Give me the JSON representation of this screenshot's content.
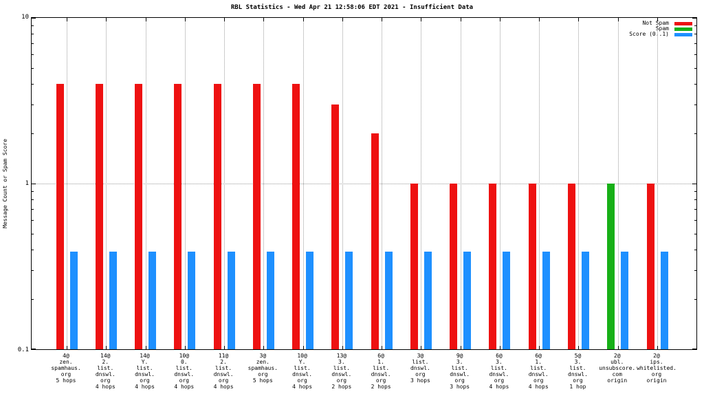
{
  "chart_data": {
    "type": "bar",
    "title": "RBL Statistics - Wed Apr 21 12:58:06 EDT 2021 - Insufficient Data",
    "ylabel": "Message Count or Spam Score",
    "xlabel": "",
    "scale": "log",
    "ylim": [
      0.1,
      10
    ],
    "y_ticks": [
      "10",
      "1",
      "0.1"
    ],
    "grid": true,
    "legend_position": "top-right",
    "categories": [
      [
        "4@",
        "zen.",
        "spamhaus.",
        "org",
        "5 hops"
      ],
      [
        "14@",
        "2.",
        "list.",
        "dnswl.",
        "org",
        "4 hops"
      ],
      [
        "14@",
        "Y.",
        "list.",
        "dnswl.",
        "org",
        "4 hops"
      ],
      [
        "10@",
        "0.",
        "list.",
        "dnswl.",
        "org",
        "4 hops"
      ],
      [
        "11@",
        "2.",
        "list.",
        "dnswl.",
        "org",
        "4 hops"
      ],
      [
        "3@",
        "zen.",
        "spamhaus.",
        "org",
        "5 hops"
      ],
      [
        "10@",
        "Y.",
        "list.",
        "dnswl.",
        "org",
        "4 hops"
      ],
      [
        "13@",
        "3.",
        "list.",
        "dnswl.",
        "org",
        "2 hops"
      ],
      [
        "6@",
        "1.",
        "list.",
        "dnswl.",
        "org",
        "2 hops"
      ],
      [
        "3@",
        "list.",
        "dnswl.",
        "org",
        "3 hops"
      ],
      [
        "9@",
        "3.",
        "list.",
        "dnswl.",
        "org",
        "3 hops"
      ],
      [
        "6@",
        "3.",
        "list.",
        "dnswl.",
        "org",
        "4 hops"
      ],
      [
        "6@",
        "1.",
        "list.",
        "dnswl.",
        "org",
        "4 hops"
      ],
      [
        "5@",
        "3.",
        "list.",
        "dnswl.",
        "org",
        "1 hop"
      ],
      [
        "2@",
        "ubl.",
        "unsubscore.",
        "com",
        "origin"
      ],
      [
        "2@",
        "ips.",
        "whitelisted.",
        "org",
        "origin"
      ]
    ],
    "series": [
      {
        "name": "Not Spam",
        "color": "#ee1111",
        "slot": "left",
        "values": [
          4,
          4,
          4,
          4,
          4,
          4,
          4,
          3,
          2,
          1,
          1,
          1,
          1,
          1,
          null,
          1
        ]
      },
      {
        "name": "Spam",
        "color": "#17b017",
        "slot": "left",
        "values": [
          null,
          null,
          null,
          null,
          null,
          null,
          null,
          null,
          null,
          null,
          null,
          null,
          null,
          null,
          1,
          null
        ]
      },
      {
        "name": "Score (0..1)",
        "color": "#1e90ff",
        "slot": "right",
        "values": [
          0.39,
          0.39,
          0.39,
          0.39,
          0.39,
          0.39,
          0.39,
          0.39,
          0.39,
          0.39,
          0.39,
          0.39,
          0.39,
          0.39,
          0.39,
          0.39
        ]
      }
    ]
  }
}
